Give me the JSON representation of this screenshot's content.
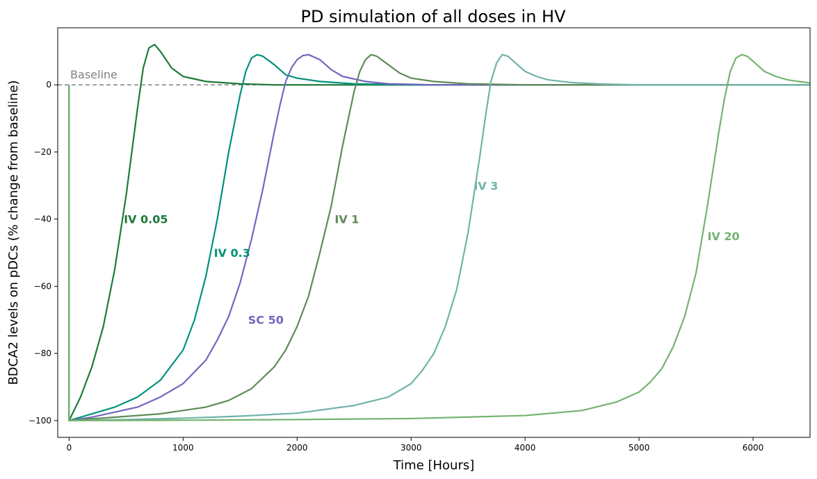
{
  "chart_data": {
    "type": "line",
    "title": "PD simulation of all doses in HV",
    "xlabel": "Time [Hours]",
    "ylabel": "BDCA2 levels on pDCs (% change from baseline)",
    "xlim": [
      -100,
      6500
    ],
    "ylim": [
      -105,
      17
    ],
    "xticks": [
      0,
      1000,
      2000,
      3000,
      4000,
      5000,
      6000
    ],
    "yticks": [
      -100,
      -80,
      -60,
      -40,
      -20,
      0
    ],
    "grid": false,
    "legend": "none",
    "baseline": {
      "value": 0,
      "label": "Baseline",
      "style": "dashed",
      "color": "#808080"
    },
    "series": [
      {
        "name": "IV 0.05",
        "color": "#1e7a3a",
        "label_at": [
          480,
          -40
        ],
        "initial": -100,
        "x": [
          0,
          100,
          200,
          300,
          400,
          500,
          550,
          600,
          650,
          700,
          750,
          800,
          900,
          1000,
          1200,
          1500,
          1800,
          2200,
          6500
        ],
        "y": [
          -100,
          -93,
          -84,
          -72,
          -55,
          -33,
          -20,
          -7,
          5,
          11,
          12,
          10,
          5,
          2.5,
          1,
          0.3,
          0,
          0,
          0
        ]
      },
      {
        "name": "IV 0.3",
        "color": "#00917a",
        "label_at": [
          1270,
          -50
        ],
        "initial": -100,
        "x": [
          0,
          200,
          400,
          600,
          800,
          1000,
          1100,
          1200,
          1300,
          1400,
          1500,
          1550,
          1600,
          1650,
          1700,
          1800,
          1900,
          2000,
          2200,
          2500,
          3000,
          6500
        ],
        "y": [
          -100,
          -98,
          -96,
          -93,
          -88,
          -79,
          -70,
          -57,
          -40,
          -20,
          -3,
          4,
          8,
          9,
          8.5,
          6,
          3,
          2,
          1,
          0.3,
          0,
          0
        ]
      },
      {
        "name": "SC 50",
        "color": "#7267be",
        "label_at": [
          1570,
          -70
        ],
        "initial": -100,
        "x": [
          0,
          200,
          400,
          600,
          800,
          1000,
          1200,
          1300,
          1400,
          1500,
          1600,
          1700,
          1800,
          1850,
          1900,
          1950,
          2000,
          2050,
          2100,
          2200,
          2300,
          2400,
          2600,
          2800,
          3200,
          6500
        ],
        "y": [
          -100,
          -99,
          -97.5,
          -96,
          -93,
          -89,
          -82,
          -76,
          -69,
          -59,
          -46,
          -31,
          -14,
          -6,
          1,
          5,
          7.5,
          8.7,
          9,
          7.5,
          4.5,
          2.5,
          1,
          0.3,
          0,
          0
        ]
      },
      {
        "name": "IV 1",
        "color": "#5f8a58",
        "label_at": [
          2330,
          -40
        ],
        "initial": -100,
        "x": [
          0,
          400,
          800,
          1200,
          1400,
          1600,
          1800,
          1900,
          2000,
          2100,
          2200,
          2300,
          2400,
          2450,
          2500,
          2550,
          2600,
          2650,
          2700,
          2800,
          2900,
          3000,
          3200,
          3500,
          4000,
          6500
        ],
        "y": [
          -100,
          -99,
          -98,
          -96,
          -94,
          -90.5,
          -84,
          -79,
          -72,
          -63,
          -50,
          -36,
          -18,
          -10,
          -2,
          4,
          7.5,
          9,
          8.5,
          6,
          3.5,
          2,
          1,
          0.3,
          0,
          0
        ]
      },
      {
        "name": "IV 3",
        "color": "#6fb3a9",
        "label_at": [
          3550,
          -30
        ],
        "initial": -100,
        "x": [
          0,
          500,
          1000,
          1500,
          2000,
          2500,
          2800,
          3000,
          3100,
          3200,
          3300,
          3400,
          3500,
          3600,
          3650,
          3700,
          3750,
          3800,
          3850,
          3900,
          4000,
          4100,
          4200,
          4400,
          4700,
          5000,
          6500
        ],
        "y": [
          -100,
          -99.7,
          -99.3,
          -98.7,
          -97.8,
          -95.5,
          -93,
          -89,
          -85,
          -80,
          -72,
          -61,
          -44,
          -22,
          -10,
          1,
          6.5,
          9,
          8.5,
          7,
          4,
          2.5,
          1.5,
          0.7,
          0.2,
          0,
          0
        ]
      },
      {
        "name": "IV 20",
        "color": "#74b36e",
        "label_at": [
          5600,
          -45
        ],
        "initial": -100,
        "x": [
          0,
          1000,
          2000,
          3000,
          4000,
          4500,
          4800,
          5000,
          5100,
          5200,
          5300,
          5400,
          5500,
          5600,
          5700,
          5750,
          5800,
          5850,
          5900,
          5950,
          6000,
          6100,
          6200,
          6300,
          6400,
          6500
        ],
        "y": [
          -100,
          -99.9,
          -99.7,
          -99.4,
          -98.5,
          -97,
          -94.5,
          -91.5,
          -88.5,
          -84.5,
          -78,
          -69,
          -56,
          -36,
          -14,
          -4,
          4,
          8,
          9,
          8.5,
          7,
          4,
          2.5,
          1.5,
          1,
          0.6
        ]
      }
    ]
  }
}
